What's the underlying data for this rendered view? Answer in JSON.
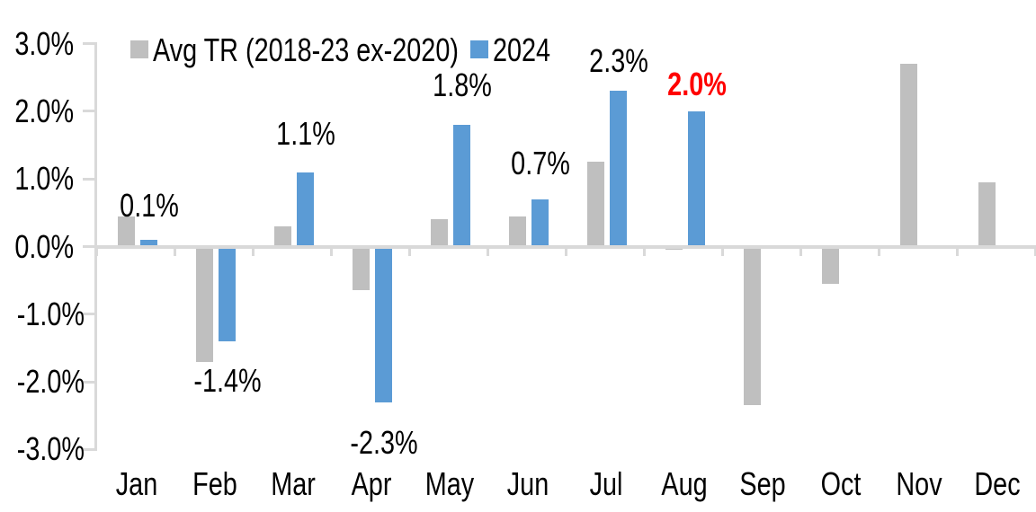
{
  "chart_data": {
    "type": "bar",
    "title": "",
    "categories": [
      "Jan",
      "Feb",
      "Mar",
      "Apr",
      "May",
      "Jun",
      "Jul",
      "Aug",
      "Sep",
      "Oct",
      "Nov",
      "Dec"
    ],
    "series": [
      {
        "name": "Avg TR (2018-23 ex-2020)",
        "color": "#BFBFBF",
        "values": [
          0.45,
          -1.7,
          0.3,
          -0.65,
          0.4,
          0.45,
          1.25,
          -0.05,
          -2.35,
          -0.55,
          2.7,
          0.95
        ]
      },
      {
        "name": "2024",
        "color": "#5B9BD5",
        "values": [
          0.1,
          -1.4,
          1.1,
          -2.3,
          1.8,
          0.7,
          2.3,
          2.0,
          null,
          null,
          null,
          null
        ]
      }
    ],
    "data_labels": [
      {
        "category": "Jan",
        "text": "0.1%",
        "color": "#000000",
        "bold": false
      },
      {
        "category": "Feb",
        "text": "-1.4%",
        "color": "#000000",
        "bold": false
      },
      {
        "category": "Mar",
        "text": "1.1%",
        "color": "#000000",
        "bold": false
      },
      {
        "category": "Apr",
        "text": "-2.3%",
        "color": "#000000",
        "bold": false
      },
      {
        "category": "May",
        "text": "1.8%",
        "color": "#000000",
        "bold": false
      },
      {
        "category": "Jun",
        "text": "0.7%",
        "color": "#000000",
        "bold": false
      },
      {
        "category": "Jul",
        "text": "2.3%",
        "color": "#000000",
        "bold": false
      },
      {
        "category": "Aug",
        "text": "2.0%",
        "color": "#FF0000",
        "bold": true
      }
    ],
    "y_axis": {
      "tick_labels": [
        "3.0%",
        "2.0%",
        "1.0%",
        "0.0%",
        "-1.0%",
        "-2.0%",
        "-3.0%"
      ],
      "max": 3.0,
      "min": -3.0,
      "unit": "%"
    },
    "x_axis": {
      "label": ""
    },
    "legend": {
      "position": "top",
      "entries": [
        "Avg TR (2018-23 ex-2020)",
        "2024"
      ]
    },
    "gridlines": "none",
    "axis_color": "#D9D9D9",
    "background_color": "#FFFFFF",
    "text_color": "#000000"
  }
}
